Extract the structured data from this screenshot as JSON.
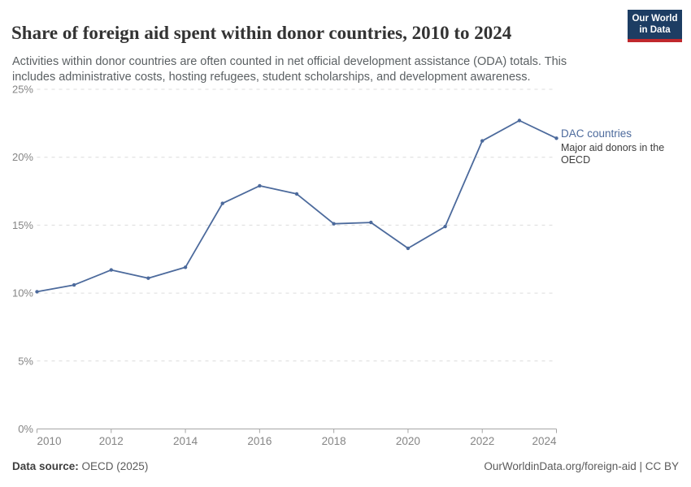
{
  "header": {
    "title": "Share of foreign aid spent within donor countries, 2010 to 2024",
    "subtitle": "Activities within donor countries are often counted in net official development assistance (ODA) totals. This includes administrative costs, hosting refugees, student scholarships, and development awareness.",
    "logo": {
      "line1": "Our World",
      "line2": "in Data"
    }
  },
  "chart_data": {
    "type": "line",
    "title": "Share of foreign aid spent within donor countries, 2010 to 2024",
    "xlabel": "",
    "ylabel": "",
    "xlim": [
      2010,
      2024
    ],
    "ylim": [
      0,
      25
    ],
    "grid": "horizontal-dashed",
    "legend_position": "end-of-line-label",
    "x": [
      2010,
      2011,
      2012,
      2013,
      2014,
      2015,
      2016,
      2017,
      2018,
      2019,
      2020,
      2021,
      2022,
      2023,
      2024
    ],
    "series": [
      {
        "name": "DAC countries",
        "annotation": "Major aid donors in the OECD",
        "color": "#4c6a9c",
        "values": [
          10.1,
          10.6,
          11.7,
          11.1,
          11.9,
          16.6,
          17.9,
          17.3,
          15.1,
          15.2,
          13.3,
          14.9,
          21.2,
          22.7,
          21.4
        ]
      }
    ],
    "yticks": [
      {
        "value": 0,
        "label": "0%"
      },
      {
        "value": 5,
        "label": "5%"
      },
      {
        "value": 10,
        "label": "10%"
      },
      {
        "value": 15,
        "label": "15%"
      },
      {
        "value": 20,
        "label": "20%"
      },
      {
        "value": 25,
        "label": "25%"
      }
    ],
    "xticks": [
      {
        "value": 2010,
        "label": "2010"
      },
      {
        "value": 2012,
        "label": "2012"
      },
      {
        "value": 2014,
        "label": "2014"
      },
      {
        "value": 2016,
        "label": "2016"
      },
      {
        "value": 2018,
        "label": "2018"
      },
      {
        "value": 2020,
        "label": "2020"
      },
      {
        "value": 2022,
        "label": "2022"
      },
      {
        "value": 2024,
        "label": "2024"
      }
    ]
  },
  "footer": {
    "source_label": "Data source:",
    "source_text": " OECD (2025)",
    "credit": "OurWorldinData.org/foreign-aid | CC BY"
  },
  "colors": {
    "line": "#4c6a9c",
    "grid": "#dcdcdc",
    "axis": "#a5a5a5",
    "tick_label": "#858585",
    "title": "#333333",
    "subtitle": "#5b6063",
    "logo_bg": "#1d3d63",
    "logo_stripe": "#c0282d"
  }
}
